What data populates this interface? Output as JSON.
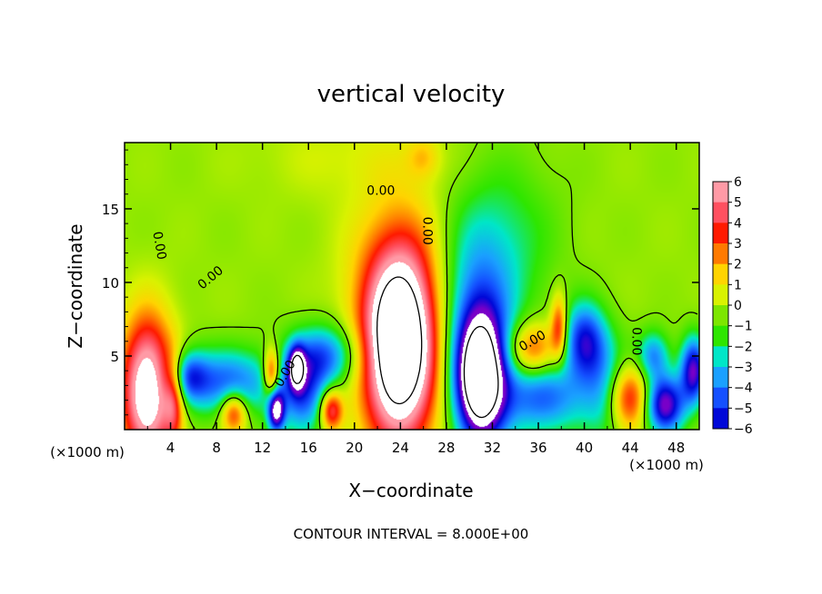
{
  "chart_data": {
    "type": "heatmap",
    "title": "vertical velocity",
    "xlabel": "X−coordinate",
    "ylabel": "Z−coordinate",
    "x_unit_label": "(×1000 m)",
    "z_unit_label": "(×1000 m)",
    "footer": "CONTOUR INTERVAL = 8.000E+00",
    "xlim": [
      0,
      50
    ],
    "ylim": [
      0,
      19.5
    ],
    "x_ticks": [
      {
        "v": 4,
        "label": "4"
      },
      {
        "v": 8,
        "label": "8"
      },
      {
        "v": 12,
        "label": "12"
      },
      {
        "v": 16,
        "label": "16"
      },
      {
        "v": 20,
        "label": "20"
      },
      {
        "v": 24,
        "label": "24"
      },
      {
        "v": 28,
        "label": "28"
      },
      {
        "v": 32,
        "label": "32"
      },
      {
        "v": 36,
        "label": "36"
      },
      {
        "v": 40,
        "label": "40"
      },
      {
        "v": 44,
        "label": "44"
      },
      {
        "v": 48,
        "label": "48"
      }
    ],
    "y_ticks": [
      {
        "v": 5,
        "label": "5"
      },
      {
        "v": 10,
        "label": "10"
      },
      {
        "v": 15,
        "label": "15"
      }
    ],
    "contour_labels": [
      {
        "x": 22.3,
        "y": 16.2,
        "text": "0.00",
        "angle": 0
      },
      {
        "x": 26.3,
        "y": 13.5,
        "text": "0.00",
        "angle": 90
      },
      {
        "x": 3.0,
        "y": 12.5,
        "text": "0.00",
        "angle": 80
      },
      {
        "x": 7.5,
        "y": 10.3,
        "text": "0.00",
        "angle": -40
      },
      {
        "x": 14.0,
        "y": 3.8,
        "text": "0.00",
        "angle": -60
      },
      {
        "x": 35.5,
        "y": 6.0,
        "text": "0.00",
        "angle": -30
      },
      {
        "x": 44.5,
        "y": 6.0,
        "text": "0.00",
        "angle": 90
      }
    ],
    "colorbar": {
      "min": -6,
      "max": 6,
      "levels": [
        {
          "label": "6",
          "color": "#ff9aa6"
        },
        {
          "label": "5",
          "color": "#ff5060"
        },
        {
          "label": "4",
          "color": "#ff1a00"
        },
        {
          "label": "3",
          "color": "#ff7a00"
        },
        {
          "label": "2",
          "color": "#ffd400"
        },
        {
          "label": "1",
          "color": "#d9f200"
        },
        {
          "label": "0",
          "color": "#7de600"
        },
        {
          "label": "−1",
          "color": "#2ee600"
        },
        {
          "label": "−2",
          "color": "#00e6c8"
        },
        {
          "label": "−3",
          "color": "#1aa0ff"
        },
        {
          "label": "−4",
          "color": "#1450ff"
        },
        {
          "label": "−5",
          "color": "#0008d8"
        },
        {
          "label": "−6",
          "color": "#7800c8"
        }
      ]
    },
    "features": [
      {
        "x": 2.0,
        "z": 2.7,
        "sx": 1.6,
        "sz": 3.4,
        "amp": 8.0
      },
      {
        "x": 4.3,
        "z": 2.0,
        "sx": 0.6,
        "sz": 2.0,
        "amp": 3.5
      },
      {
        "x": 5.5,
        "z": 3.6,
        "sx": 1.2,
        "sz": 1.2,
        "amp": -3.5
      },
      {
        "x": 9.0,
        "z": 3.2,
        "sx": 3.0,
        "sz": 1.6,
        "amp": -4.0
      },
      {
        "x": 9.5,
        "z": 1.2,
        "sx": 0.8,
        "sz": 1.0,
        "amp": 4.5
      },
      {
        "x": 12.8,
        "z": 3.8,
        "sx": 0.5,
        "sz": 1.2,
        "amp": 5.0
      },
      {
        "x": 13.2,
        "z": 1.3,
        "sx": 0.5,
        "sz": 1.0,
        "amp": -6.5
      },
      {
        "x": 15.0,
        "z": 4.2,
        "sx": 0.5,
        "sz": 1.0,
        "amp": -6.0
      },
      {
        "x": 15.5,
        "z": 2.3,
        "sx": 1.5,
        "sz": 2.0,
        "amp": -4.0
      },
      {
        "x": 17.5,
        "z": 5.0,
        "sx": 2.2,
        "sz": 1.5,
        "amp": -4.0
      },
      {
        "x": 18.0,
        "z": 1.3,
        "sx": 0.7,
        "sz": 1.0,
        "amp": 5.0
      },
      {
        "x": 24.0,
        "z": 5.6,
        "sx": 2.3,
        "sz": 4.6,
        "amp": 11.0
      },
      {
        "x": 24.0,
        "z": 11.0,
        "sx": 3.5,
        "sz": 4.0,
        "amp": 1.4
      },
      {
        "x": 31.0,
        "z": 3.4,
        "sx": 1.5,
        "sz": 3.0,
        "amp": -10.0
      },
      {
        "x": 30.5,
        "z": 8.0,
        "sx": 2.6,
        "sz": 5.0,
        "amp": -3.5
      },
      {
        "x": 35.5,
        "z": 5.4,
        "sx": 1.6,
        "sz": 1.3,
        "amp": 4.0
      },
      {
        "x": 37.8,
        "z": 7.0,
        "sx": 0.5,
        "sz": 1.5,
        "amp": 4.0
      },
      {
        "x": 36.5,
        "z": 2.2,
        "sx": 2.5,
        "sz": 1.8,
        "amp": -4.0
      },
      {
        "x": 40.0,
        "z": 6.0,
        "sx": 1.3,
        "sz": 1.8,
        "amp": -5.0
      },
      {
        "x": 42.0,
        "z": 2.8,
        "sx": 1.5,
        "sz": 2.5,
        "amp": -3.0
      },
      {
        "x": 43.8,
        "z": 2.2,
        "sx": 1.3,
        "sz": 1.6,
        "amp": 5.0
      },
      {
        "x": 47.0,
        "z": 1.7,
        "sx": 1.2,
        "sz": 1.4,
        "amp": -6.5
      },
      {
        "x": 49.5,
        "z": 4.0,
        "sx": 0.8,
        "sz": 1.6,
        "amp": -6.0
      },
      {
        "x": 46.0,
        "z": 5.0,
        "sx": 1.0,
        "sz": 1.2,
        "amp": -3.5
      },
      {
        "x": 20.0,
        "z": 18.5,
        "sx": 6.0,
        "sz": 2.0,
        "amp": 0.7
      },
      {
        "x": 26.0,
        "z": 18.5,
        "sx": 1.0,
        "sz": 1.0,
        "amp": 1.5
      },
      {
        "x": 34.0,
        "z": 13.0,
        "sx": 3.0,
        "sz": 4.0,
        "amp": -1.2
      }
    ]
  }
}
